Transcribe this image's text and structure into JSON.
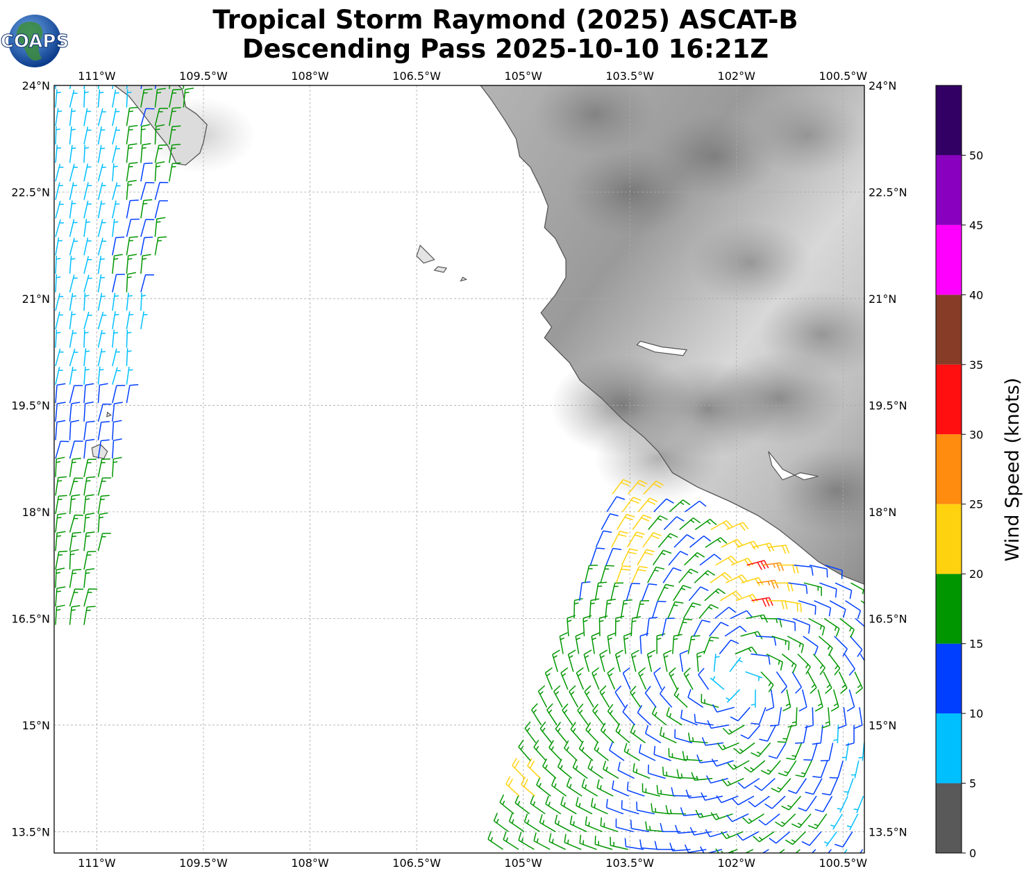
{
  "title": {
    "line1": "Tropical Storm Raymond (2025) ASCAT-B",
    "line2": "Descending Pass 2025-10-10 16:21Z"
  },
  "logo": {
    "text": "COAPS",
    "icon": "globe-logo-icon"
  },
  "map": {
    "lon_range": [
      -111.6,
      -100.2
    ],
    "lat_range": [
      13.2,
      24.0
    ],
    "lon_ticks": [
      {
        "value": -111.0,
        "label": "111°W"
      },
      {
        "value": -109.5,
        "label": "109.5°W"
      },
      {
        "value": -108.0,
        "label": "108°W"
      },
      {
        "value": -106.5,
        "label": "106.5°W"
      },
      {
        "value": -105.0,
        "label": "105°W"
      },
      {
        "value": -103.5,
        "label": "103.5°W"
      },
      {
        "value": -102.0,
        "label": "102°W"
      },
      {
        "value": -100.5,
        "label": "100.5°W"
      }
    ],
    "lat_ticks": [
      {
        "value": 24.0,
        "label": "24°N"
      },
      {
        "value": 22.5,
        "label": "22.5°N"
      },
      {
        "value": 21.0,
        "label": "21°N"
      },
      {
        "value": 19.5,
        "label": "19.5°N"
      },
      {
        "value": 18.0,
        "label": "18°N"
      },
      {
        "value": 16.5,
        "label": "16.5°N"
      },
      {
        "value": 15.0,
        "label": "15°N"
      },
      {
        "value": 13.5,
        "label": "13.5°N"
      }
    ],
    "gridlines": true,
    "background": "grayscale topography over land, white ocean",
    "coastline_color": "#555555",
    "mainland_coast": [
      [
        -105.6,
        24.0
      ],
      [
        -105.45,
        23.8
      ],
      [
        -105.25,
        23.5
      ],
      [
        -105.1,
        23.25
      ],
      [
        -105.05,
        23.0
      ],
      [
        -104.9,
        22.85
      ],
      [
        -104.75,
        22.55
      ],
      [
        -104.65,
        22.3
      ],
      [
        -104.7,
        22.0
      ],
      [
        -104.55,
        21.85
      ],
      [
        -104.4,
        21.55
      ],
      [
        -104.4,
        21.3
      ],
      [
        -104.55,
        21.05
      ],
      [
        -104.75,
        20.8
      ],
      [
        -104.6,
        20.6
      ],
      [
        -104.7,
        20.45
      ],
      [
        -104.55,
        20.3
      ],
      [
        -104.35,
        20.1
      ],
      [
        -104.2,
        19.85
      ],
      [
        -103.9,
        19.6
      ],
      [
        -103.6,
        19.3
      ],
      [
        -103.3,
        19.05
      ],
      [
        -103.1,
        18.85
      ],
      [
        -102.9,
        18.55
      ],
      [
        -102.55,
        18.35
      ],
      [
        -102.1,
        18.15
      ],
      [
        -101.7,
        17.95
      ],
      [
        -101.4,
        17.75
      ],
      [
        -101.15,
        17.55
      ],
      [
        -100.85,
        17.3
      ],
      [
        -100.5,
        17.1
      ],
      [
        -100.2,
        16.98
      ]
    ],
    "baja_coast": [
      [
        -110.75,
        24.0
      ],
      [
        -110.55,
        23.85
      ],
      [
        -110.35,
        23.6
      ],
      [
        -110.2,
        23.4
      ],
      [
        -110.0,
        23.15
      ],
      [
        -109.88,
        22.9
      ],
      [
        -109.75,
        22.88
      ],
      [
        -109.55,
        23.05
      ],
      [
        -109.5,
        23.2
      ],
      [
        -109.45,
        23.45
      ],
      [
        -109.6,
        23.6
      ],
      [
        -109.75,
        23.7
      ],
      [
        -109.8,
        23.95
      ],
      [
        -109.85,
        24.0
      ]
    ],
    "islands": [
      [
        [
          -106.45,
          21.75
        ],
        [
          -106.35,
          21.65
        ],
        [
          -106.25,
          21.55
        ],
        [
          -106.4,
          21.5
        ],
        [
          -106.5,
          21.6
        ]
      ],
      [
        [
          -106.2,
          21.45
        ],
        [
          -106.08,
          21.43
        ],
        [
          -106.12,
          21.37
        ],
        [
          -106.25,
          21.4
        ]
      ],
      [
        [
          -105.85,
          21.3
        ],
        [
          -105.8,
          21.27
        ],
        [
          -105.88,
          21.25
        ]
      ],
      [
        [
          -110.95,
          18.95
        ],
        [
          -110.85,
          18.85
        ],
        [
          -110.9,
          18.75
        ],
        [
          -111.05,
          18.78
        ],
        [
          -111.07,
          18.9
        ]
      ],
      [
        [
          -110.85,
          19.4
        ],
        [
          -110.8,
          19.36
        ],
        [
          -110.86,
          19.34
        ]
      ]
    ],
    "lakes": [
      [
        [
          -103.4,
          20.35
        ],
        [
          -103.15,
          20.25
        ],
        [
          -102.75,
          20.2
        ],
        [
          -102.7,
          20.28
        ],
        [
          -103.05,
          20.32
        ],
        [
          -103.35,
          20.4
        ]
      ],
      [
        [
          -101.55,
          18.85
        ],
        [
          -101.35,
          18.6
        ],
        [
          -101.05,
          18.45
        ],
        [
          -100.85,
          18.5
        ],
        [
          -101.1,
          18.55
        ],
        [
          -101.35,
          18.45
        ],
        [
          -101.5,
          18.65
        ]
      ]
    ],
    "relief_spots": [
      {
        "lon": -103.6,
        "lat": 19.5,
        "level": 0.55
      },
      {
        "lon": -102.4,
        "lat": 19.45,
        "level": 0.5
      },
      {
        "lon": -101.4,
        "lat": 19.6,
        "level": 0.45
      },
      {
        "lon": -103.5,
        "lat": 22.5,
        "level": 0.4
      },
      {
        "lon": -102.3,
        "lat": 23.0,
        "level": 0.35
      },
      {
        "lon": -101.8,
        "lat": 21.5,
        "level": 0.35
      },
      {
        "lon": -100.6,
        "lat": 18.3,
        "level": 0.4
      },
      {
        "lon": -103.1,
        "lat": 18.75,
        "level": 0.4
      },
      {
        "lon": -100.8,
        "lat": 20.5,
        "level": 0.38
      },
      {
        "lon": -104.0,
        "lat": 23.6,
        "level": 0.35
      },
      {
        "lon": -101.0,
        "lat": 23.3,
        "level": 0.3
      },
      {
        "lon": -109.55,
        "lat": 23.3,
        "level": 0.25
      }
    ]
  },
  "wind_swaths": [
    {
      "name": "west",
      "lon_range": [
        -111.6,
        -109.8
      ],
      "lat_range": [
        16.2,
        24.0
      ],
      "pattern": "northwesterly"
    },
    {
      "name": "storm",
      "lon_range": [
        -105.3,
        -100.2
      ],
      "lat_range": [
        13.2,
        18.4
      ],
      "center": {
        "lon": -102.0,
        "lat": 15.6
      },
      "pattern": "cyclonic"
    }
  ],
  "colorbar": {
    "label": "Wind Speed (knots)",
    "bins": [
      {
        "from": 0,
        "to": 5,
        "color": "#595959"
      },
      {
        "from": 5,
        "to": 10,
        "color": "#00bfff"
      },
      {
        "from": 10,
        "to": 15,
        "color": "#003fff"
      },
      {
        "from": 15,
        "to": 20,
        "color": "#009600"
      },
      {
        "from": 20,
        "to": 25,
        "color": "#ffd20f"
      },
      {
        "from": 25,
        "to": 30,
        "color": "#ff8c0f"
      },
      {
        "from": 30,
        "to": 35,
        "color": "#ff0f0f"
      },
      {
        "from": 35,
        "to": 40,
        "color": "#873c28"
      },
      {
        "from": 40,
        "to": 45,
        "color": "#ff00ff"
      },
      {
        "from": 45,
        "to": 50,
        "color": "#8a00bf"
      },
      {
        "from": 50,
        "to": 55,
        "color": "#320064"
      }
    ],
    "ticks": [
      "0",
      "5",
      "10",
      "15",
      "20",
      "25",
      "30",
      "35",
      "40",
      "45",
      "50"
    ]
  }
}
